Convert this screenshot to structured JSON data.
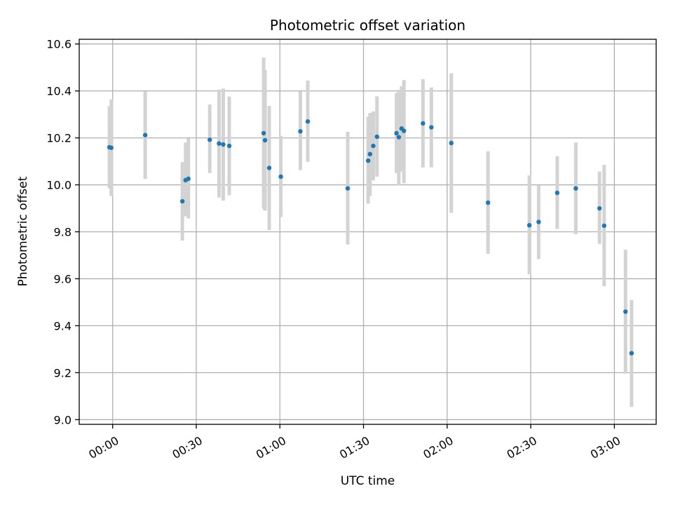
{
  "chart_data": {
    "type": "scatter",
    "title": "Photometric offset variation",
    "xlabel": "UTC time",
    "ylabel": "Photometric offset",
    "xlim": [
      "23:48",
      "03:15"
    ],
    "ylim": [
      8.98,
      10.62
    ],
    "grid": true,
    "x_ticks": [
      "00:00",
      "00:30",
      "01:00",
      "01:30",
      "02:00",
      "02:30",
      "03:00"
    ],
    "y_ticks": [
      "9.0",
      "9.2",
      "9.4",
      "9.6",
      "9.8",
      "10.0",
      "10.2",
      "10.4",
      "10.6"
    ],
    "colors": {
      "points": "#1f77b4",
      "errorbars": "#d3d3d3",
      "grid": "#b0b0b0"
    },
    "series": [
      {
        "points": [
          {
            "x": "23:58:50",
            "y": 10.16,
            "lo": 9.985,
            "hi": 10.335
          },
          {
            "x": "23:59:30",
            "y": 10.158,
            "lo": 9.952,
            "hi": 10.364
          },
          {
            "x": "00:11:40",
            "y": 10.212,
            "lo": 10.025,
            "hi": 10.399
          },
          {
            "x": "00:25:00",
            "y": 9.93,
            "lo": 9.763,
            "hi": 10.097
          },
          {
            "x": "00:26:10",
            "y": 10.02,
            "lo": 9.866,
            "hi": 10.18
          },
          {
            "x": "00:27:10",
            "y": 10.026,
            "lo": 9.857,
            "hi": 10.198
          },
          {
            "x": "00:34:50",
            "y": 10.192,
            "lo": 10.05,
            "hi": 10.342
          },
          {
            "x": "00:38:10",
            "y": 10.176,
            "lo": 9.946,
            "hi": 10.406
          },
          {
            "x": "00:39:40",
            "y": 10.172,
            "lo": 9.933,
            "hi": 10.41
          },
          {
            "x": "00:41:50",
            "y": 10.166,
            "lo": 9.956,
            "hi": 10.376
          },
          {
            "x": "00:54:10",
            "y": 10.22,
            "lo": 9.898,
            "hi": 10.542
          },
          {
            "x": "00:54:40",
            "y": 10.19,
            "lo": 9.89,
            "hi": 10.49
          },
          {
            "x": "00:56:10",
            "y": 10.072,
            "lo": 9.807,
            "hi": 10.336
          },
          {
            "x": "01:00:20",
            "y": 10.035,
            "lo": 9.863,
            "hi": 10.209
          },
          {
            "x": "01:07:20",
            "y": 10.228,
            "lo": 10.063,
            "hi": 10.398
          },
          {
            "x": "01:10:00",
            "y": 10.27,
            "lo": 10.098,
            "hi": 10.444
          },
          {
            "x": "01:24:20",
            "y": 9.985,
            "lo": 9.746,
            "hi": 10.226
          },
          {
            "x": "01:31:40",
            "y": 10.103,
            "lo": 9.92,
            "hi": 10.29
          },
          {
            "x": "01:32:20",
            "y": 10.131,
            "lo": 9.953,
            "hi": 10.306
          },
          {
            "x": "01:33:30",
            "y": 10.166,
            "lo": 10.019,
            "hi": 10.313
          },
          {
            "x": "01:34:50",
            "y": 10.205,
            "lo": 10.035,
            "hi": 10.377
          },
          {
            "x": "01:41:50",
            "y": 10.22,
            "lo": 10.05,
            "hi": 10.392
          },
          {
            "x": "01:42:40",
            "y": 10.203,
            "lo": 9.999,
            "hi": 10.405
          },
          {
            "x": "01:43:40",
            "y": 10.24,
            "lo": 10.056,
            "hi": 10.42
          },
          {
            "x": "01:44:30",
            "y": 10.23,
            "lo": 10.007,
            "hi": 10.446
          },
          {
            "x": "01:51:20",
            "y": 10.262,
            "lo": 10.074,
            "hi": 10.45
          },
          {
            "x": "01:54:20",
            "y": 10.245,
            "lo": 10.075,
            "hi": 10.415
          },
          {
            "x": "02:01:30",
            "y": 10.178,
            "lo": 9.881,
            "hi": 10.475
          },
          {
            "x": "02:14:40",
            "y": 9.924,
            "lo": 9.706,
            "hi": 10.143
          },
          {
            "x": "02:29:30",
            "y": 9.828,
            "lo": 9.619,
            "hi": 10.04
          },
          {
            "x": "02:32:50",
            "y": 9.842,
            "lo": 9.684,
            "hi": 9.998
          },
          {
            "x": "02:39:30",
            "y": 9.966,
            "lo": 9.812,
            "hi": 10.122
          },
          {
            "x": "02:46:10",
            "y": 9.985,
            "lo": 9.79,
            "hi": 10.18
          },
          {
            "x": "02:54:40",
            "y": 9.9,
            "lo": 9.749,
            "hi": 10.057
          },
          {
            "x": "02:56:20",
            "y": 9.826,
            "lo": 9.568,
            "hi": 10.085
          },
          {
            "x": "03:04:00",
            "y": 9.46,
            "lo": 9.196,
            "hi": 9.724
          },
          {
            "x": "03:06:10",
            "y": 9.283,
            "lo": 9.054,
            "hi": 9.51
          }
        ]
      }
    ]
  }
}
